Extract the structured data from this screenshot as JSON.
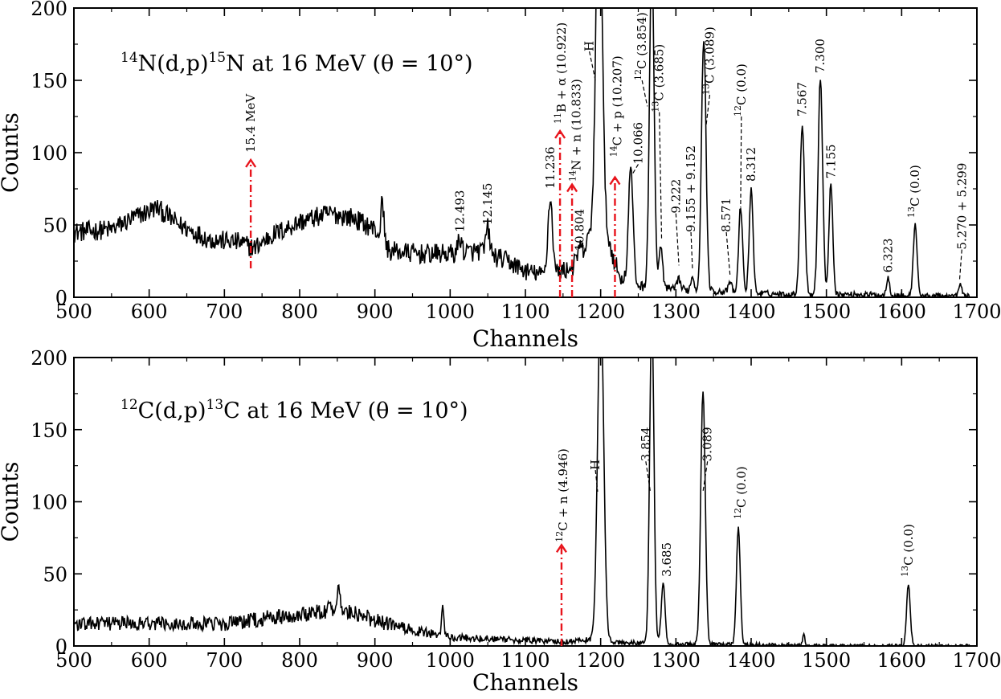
{
  "chart_data": [
    {
      "type": "line",
      "title_parts": {
        "pre_sup": "14",
        "a": "N(d,p)",
        "mid_sup": "15",
        "b": "N at 16 MeV (θ = 10°)"
      },
      "xlabel": "Channels",
      "ylabel": "Counts",
      "xlim": [
        500,
        1700
      ],
      "ylim": [
        0,
        200
      ],
      "xticks": [
        "500",
        "600",
        "700",
        "800",
        "900",
        "1000",
        "1100",
        "1200",
        "1300",
        "1400",
        "1500",
        "1600",
        "1700"
      ],
      "yticks": [
        "0",
        "50",
        "100",
        "150",
        "200"
      ],
      "xtick_values": [
        500,
        600,
        700,
        800,
        900,
        1000,
        1100,
        1200,
        1300,
        1400,
        1500,
        1600,
        1700
      ],
      "ytick_values": [
        0,
        50,
        100,
        150,
        200
      ],
      "baseline": [
        [
          500,
          45
        ],
        [
          550,
          47
        ],
        [
          580,
          55
        ],
        [
          610,
          62
        ],
        [
          640,
          50
        ],
        [
          680,
          40
        ],
        [
          720,
          38
        ],
        [
          740,
          34
        ],
        [
          760,
          42
        ],
        [
          800,
          52
        ],
        [
          840,
          58
        ],
        [
          870,
          55
        ],
        [
          900,
          47
        ],
        [
          910,
          38
        ],
        [
          920,
          32
        ],
        [
          960,
          30
        ],
        [
          1000,
          30
        ],
        [
          1040,
          32
        ],
        [
          1080,
          24
        ],
        [
          1100,
          18
        ],
        [
          1120,
          16
        ],
        [
          1140,
          17
        ],
        [
          1160,
          20
        ],
        [
          1175,
          28
        ],
        [
          1185,
          42
        ],
        [
          1195,
          60
        ],
        [
          1210,
          40
        ],
        [
          1225,
          14
        ],
        [
          1250,
          8
        ],
        [
          1280,
          6
        ],
        [
          1320,
          5
        ],
        [
          1360,
          4
        ],
        [
          1400,
          3
        ],
        [
          1450,
          2
        ],
        [
          1500,
          2
        ],
        [
          1550,
          2
        ],
        [
          1600,
          1
        ],
        [
          1650,
          1
        ],
        [
          1680,
          1
        ]
      ],
      "noise": 7,
      "peaks": [
        {
          "x": 910,
          "h": 28,
          "w": 2
        },
        {
          "x": 1013,
          "h": 10,
          "w": 2.5
        },
        {
          "x": 1050,
          "h": 18,
          "w": 2.5
        },
        {
          "x": 1133,
          "h": 52,
          "w": 3
        },
        {
          "x": 1172,
          "h": 8,
          "w": 2.5
        },
        {
          "x": 1198,
          "h": 240,
          "w": 4
        },
        {
          "x": 1240,
          "h": 80,
          "w": 3
        },
        {
          "x": 1268,
          "h": 230,
          "w": 3
        },
        {
          "x": 1280,
          "h": 28,
          "w": 2.5
        },
        {
          "x": 1304,
          "h": 8,
          "w": 2
        },
        {
          "x": 1322,
          "h": 10,
          "w": 2
        },
        {
          "x": 1337,
          "h": 175,
          "w": 3
        },
        {
          "x": 1372,
          "h": 7,
          "w": 2
        },
        {
          "x": 1386,
          "h": 60,
          "w": 2.5
        },
        {
          "x": 1400,
          "h": 73,
          "w": 2.5
        },
        {
          "x": 1468,
          "h": 118,
          "w": 3
        },
        {
          "x": 1492,
          "h": 150,
          "w": 3
        },
        {
          "x": 1506,
          "h": 77,
          "w": 2.5
        },
        {
          "x": 1582,
          "h": 13,
          "w": 2
        },
        {
          "x": 1618,
          "h": 50,
          "w": 2.5
        },
        {
          "x": 1678,
          "h": 8,
          "w": 2
        }
      ],
      "annotations": [
        {
          "text": "15.4 MeV",
          "x": 735,
          "y": 100,
          "lead_to": null
        },
        {
          "text": "12.493",
          "x": 1013,
          "y": 45,
          "lead_to": null
        },
        {
          "text": "12.145",
          "x": 1050,
          "y": 50,
          "lead_to": null
        },
        {
          "text": "11.236",
          "x": 1133,
          "y": 75,
          "lead_to": null
        },
        {
          "text": "10.804",
          "x": 1172,
          "y": 32,
          "lead_to": null
        },
        {
          "sup": "11",
          "text": "B + α (10.922)",
          "x": 1148,
          "y": 120,
          "lead_to": null
        },
        {
          "sup": "14",
          "text": "N + n (10.833)",
          "x": 1168,
          "y": 80,
          "lead_to": null
        },
        {
          "text": "H",
          "x": 1185,
          "y": 170,
          "lead_to": [
            1193,
            150
          ]
        },
        {
          "sup": "14",
          "text": "C + p (10.207)",
          "x": 1222,
          "y": 97,
          "lead_to": null
        },
        {
          "text": "10.066",
          "x": 1250,
          "y": 92,
          "lead_to": [
            1242,
            85
          ]
        },
        {
          "sup": "12",
          "text": "C (3.854)",
          "x": 1255,
          "y": 150,
          "lead_to": [
            1262,
            132
          ]
        },
        {
          "sup": "13",
          "text": "C (3.685)",
          "x": 1278,
          "y": 128,
          "lead_to": [
            1281,
            40
          ]
        },
        {
          "text": "9.222",
          "x": 1300,
          "y": 58,
          "lead_to": [
            1304,
            22
          ]
        },
        {
          "text": "9.155 + 9.152",
          "x": 1320,
          "y": 45,
          "lead_to": [
            1322,
            20
          ]
        },
        {
          "sup": "13",
          "text": "C (3.089)",
          "x": 1345,
          "y": 140,
          "lead_to": [
            1340,
            118
          ]
        },
        {
          "text": "8.571",
          "x": 1367,
          "y": 45,
          "lead_to": [
            1372,
            15
          ]
        },
        {
          "sup": "12",
          "text": "C (0.0)",
          "x": 1387,
          "y": 125,
          "lead_to": [
            1386,
            62
          ]
        },
        {
          "text": "8.312",
          "x": 1400,
          "y": 80,
          "lead_to": null
        },
        {
          "text": "7.567",
          "x": 1468,
          "y": 125,
          "lead_to": null
        },
        {
          "text": "7.300",
          "x": 1492,
          "y": 155,
          "lead_to": null
        },
        {
          "text": "7.155",
          "x": 1506,
          "y": 82,
          "lead_to": null
        },
        {
          "text": "6.323",
          "x": 1582,
          "y": 17,
          "lead_to": null
        },
        {
          "sup": "13",
          "text": "C (0.0)",
          "x": 1618,
          "y": 55,
          "lead_to": null
        },
        {
          "text": "5.270 + 5.299",
          "x": 1680,
          "y": 33,
          "lead_to": [
            1677,
            12
          ]
        }
      ],
      "arrows": [
        {
          "x": 735,
          "y_from": 20,
          "y_to": 95
        },
        {
          "x": 1146,
          "y_from": 0,
          "y_to": 115
        },
        {
          "x": 1162,
          "y_from": 0,
          "y_to": 78
        },
        {
          "x": 1219,
          "y_from": 0,
          "y_to": 83
        }
      ]
    },
    {
      "type": "line",
      "title_parts": {
        "pre_sup": "12",
        "a": "C(d,p)",
        "mid_sup": "13",
        "b": "C at 16 MeV (θ = 10°)"
      },
      "xlabel": "Channels",
      "ylabel": "Counts",
      "xlim": [
        500,
        1700
      ],
      "ylim": [
        0,
        200
      ],
      "xticks": [
        "500",
        "600",
        "700",
        "800",
        "900",
        "1000",
        "1100",
        "1200",
        "1300",
        "1400",
        "1500",
        "1600",
        "1700"
      ],
      "yticks": [
        "0",
        "50",
        "100",
        "150",
        "200"
      ],
      "xtick_values": [
        500,
        600,
        700,
        800,
        900,
        1000,
        1100,
        1200,
        1300,
        1400,
        1500,
        1600,
        1700
      ],
      "ytick_values": [
        0,
        50,
        100,
        150,
        200
      ],
      "baseline": [
        [
          500,
          15
        ],
        [
          600,
          16
        ],
        [
          700,
          15
        ],
        [
          800,
          22
        ],
        [
          850,
          26
        ],
        [
          900,
          18
        ],
        [
          940,
          12
        ],
        [
          1000,
          6
        ],
        [
          1050,
          5
        ],
        [
          1100,
          4
        ],
        [
          1150,
          3
        ],
        [
          1180,
          4
        ],
        [
          1250,
          2
        ],
        [
          1300,
          1
        ],
        [
          1400,
          1
        ],
        [
          1500,
          0
        ],
        [
          1600,
          0
        ],
        [
          1700,
          0
        ]
      ],
      "noise": 6,
      "peaks": [
        {
          "x": 852,
          "h": 12,
          "w": 2
        },
        {
          "x": 990,
          "h": 22,
          "w": 1.5
        },
        {
          "x": 1200,
          "h": 240,
          "w": 4
        },
        {
          "x": 1268,
          "h": 230,
          "w": 2.8
        },
        {
          "x": 1283,
          "h": 42,
          "w": 2.5
        },
        {
          "x": 1336,
          "h": 175,
          "w": 3
        },
        {
          "x": 1383,
          "h": 82,
          "w": 2.5
        },
        {
          "x": 1470,
          "h": 7,
          "w": 1.5
        },
        {
          "x": 1609,
          "h": 42,
          "w": 2.5
        }
      ],
      "annotations": [
        {
          "sup": "12",
          "text": "C + n (4.946)",
          "x": 1150,
          "y": 72,
          "lead_to": null
        },
        {
          "text": "H",
          "x": 1193,
          "y": 122,
          "lead_to": [
            1196,
            107
          ]
        },
        {
          "text": "3.854",
          "x": 1260,
          "y": 128,
          "lead_to": [
            1266,
            107
          ]
        },
        {
          "text": "3.685",
          "x": 1288,
          "y": 48,
          "lead_to": null
        },
        {
          "text": "3.089",
          "x": 1342,
          "y": 128,
          "lead_to": [
            1336,
            107
          ]
        },
        {
          "sup": "12",
          "text": "C (0.0)",
          "x": 1387,
          "y": 88,
          "lead_to": null
        },
        {
          "sup": "13",
          "text": "C (0.0)",
          "x": 1609,
          "y": 48,
          "lead_to": null
        }
      ],
      "arrows": [
        {
          "x": 1148,
          "y_from": 0,
          "y_to": 70
        }
      ]
    }
  ],
  "colors": {
    "line": "#000000",
    "arrow": "#e8141c",
    "background": "#ffffff"
  }
}
